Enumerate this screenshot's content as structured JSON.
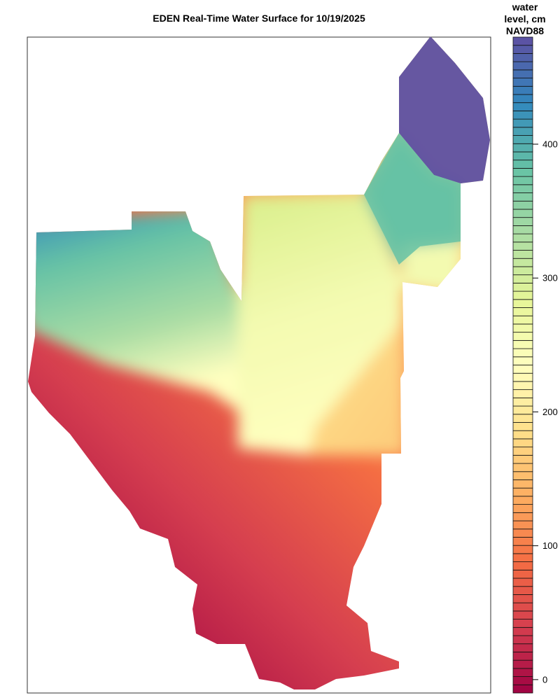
{
  "title": "EDEN Real-Time Water Surface for 10/19/2025",
  "legend": {
    "title_lines": [
      "water",
      "level, cm",
      "NAVD88"
    ],
    "ticks": [
      0,
      100,
      200,
      300,
      400
    ],
    "range": [
      -10,
      480
    ],
    "levels": 80,
    "palette": [
      "#9E0142",
      "#D53E4F",
      "#F46D43",
      "#FDAE61",
      "#FEE08B",
      "#FFFFBF",
      "#E6F598",
      "#ABDDA4",
      "#66C2A5",
      "#3288BD",
      "#5E4FA2"
    ]
  },
  "chart_data": {
    "type": "heatmap",
    "title": "EDEN Real-Time Water Surface for 10/19/2025",
    "colorbar_label": "water level, cm NAVD88",
    "colorbar_ticks": [
      0,
      100,
      200,
      300,
      400
    ],
    "value_range": [
      -10,
      480
    ],
    "palette": "spectral",
    "regions": [
      {
        "area": "northeast",
        "approx_value": 460
      },
      {
        "area": "north-central east",
        "approx_value": 390
      },
      {
        "area": "northwest",
        "approx_value": 380
      },
      {
        "area": "central",
        "approx_value": 260
      },
      {
        "area": "east strip",
        "approx_value": 200
      },
      {
        "area": "south",
        "approx_value": 60
      }
    ]
  }
}
